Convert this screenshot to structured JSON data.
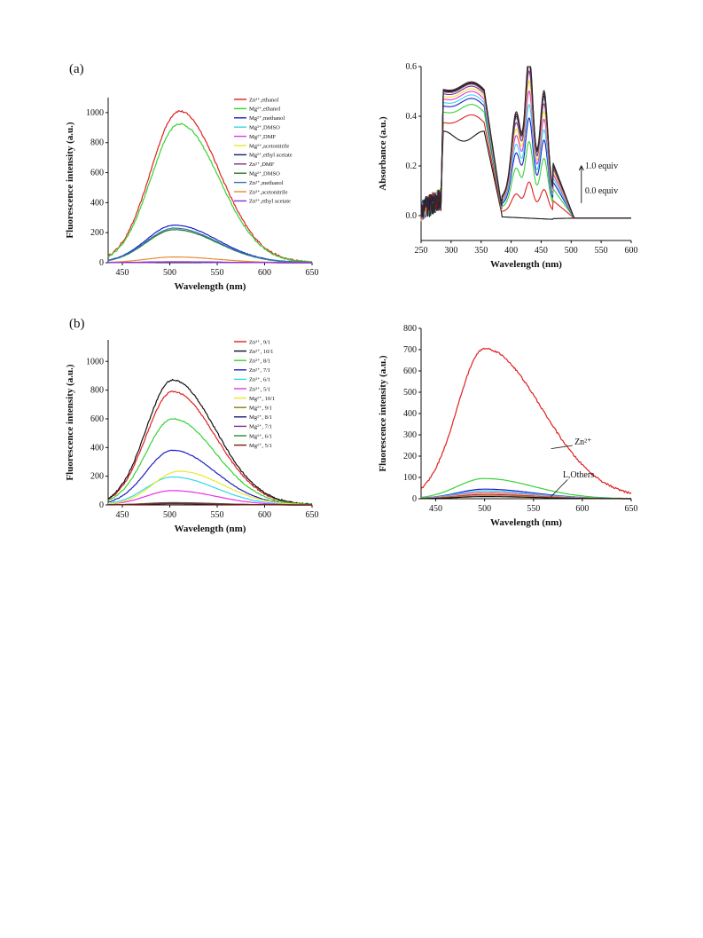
{
  "panels": {
    "a": "(a)",
    "b": "(b)"
  },
  "chart_data": [
    {
      "id": "chart1",
      "type": "line",
      "xlabel": "Wavelength (nm)",
      "ylabel": "Fluorescence intensity (a.u.)",
      "xlim": [
        435,
        650
      ],
      "ylim": [
        0,
        1100
      ],
      "xticks": [
        450,
        500,
        550,
        600,
        650
      ],
      "yticks": [
        0,
        200,
        400,
        600,
        800,
        1000
      ],
      "legend_position": "top-right",
      "series": [
        {
          "name": "Zn²⁺,ethanol",
          "color": "#e02020",
          "peak": 1010,
          "center": 510,
          "wl": 30,
          "wr": 42
        },
        {
          "name": "Mg²⁺,ethanol",
          "color": "#36d236",
          "peak": 925,
          "center": 510,
          "wl": 30,
          "wr": 42
        },
        {
          "name": "Mg²⁺,methanol",
          "color": "#1f1fc4",
          "peak": 250,
          "center": 505,
          "wl": 30,
          "wr": 45
        },
        {
          "name": "Mg²⁺,DMSO",
          "color": "#30d8e8",
          "peak": 4,
          "center": 505,
          "wl": 30,
          "wr": 45
        },
        {
          "name": "Mg²⁺,DMF",
          "color": "#e830e8",
          "peak": 4,
          "center": 505,
          "wl": 30,
          "wr": 45
        },
        {
          "name": "Mg²⁺,acetonitrile",
          "color": "#e8e830",
          "peak": 5,
          "center": 505,
          "wl": 30,
          "wr": 45
        },
        {
          "name": "Mg²⁺,ethyl acetate",
          "color": "#1a1a60",
          "peak": 5,
          "center": 505,
          "wl": 30,
          "wr": 45
        },
        {
          "name": "Zn²⁺,DMF",
          "color": "#8a2a8a",
          "peak": 5,
          "center": 505,
          "wl": 30,
          "wr": 45
        },
        {
          "name": "Mg²⁺,DMSO",
          "color": "#2a7a2a",
          "peak": 220,
          "center": 505,
          "wl": 30,
          "wr": 45
        },
        {
          "name": "Zn²⁺,methanol",
          "color": "#2a7ab0",
          "peak": 230,
          "center": 505,
          "wl": 30,
          "wr": 45
        },
        {
          "name": "Zn²⁺,acetonitrile",
          "color": "#e88a30",
          "peak": 38,
          "center": 505,
          "wl": 30,
          "wr": 45
        },
        {
          "name": "Zn²⁺,ethyl acetate",
          "color": "#8a2ae8",
          "peak": 6,
          "center": 505,
          "wl": 30,
          "wr": 45
        }
      ]
    },
    {
      "id": "chart2",
      "type": "line",
      "xlabel": "Wavelength (nm)",
      "ylabel": "Absorbance (a.u.)",
      "xlim": [
        250,
        600
      ],
      "ylim": [
        -0.1,
        0.6
      ],
      "xticks": [
        250,
        300,
        350,
        400,
        450,
        500,
        550,
        600
      ],
      "yticks": [
        0.0,
        0.2,
        0.4,
        0.6
      ],
      "annotations": [
        "1.0 equiv",
        "0.0 equiv"
      ],
      "series": [
        {
          "color": "#111111",
          "amp": 0.0
        },
        {
          "color": "#e02020",
          "amp": 0.1
        },
        {
          "color": "#36d236",
          "amp": 0.22
        },
        {
          "color": "#1f1fc4",
          "amp": 0.29
        },
        {
          "color": "#30d8e8",
          "amp": 0.33
        },
        {
          "color": "#e830e8",
          "amp": 0.37
        },
        {
          "color": "#e8e830",
          "amp": 0.4
        },
        {
          "color": "#8a2a8a",
          "amp": 0.43
        },
        {
          "color": "#a0a0a0",
          "amp": 0.45
        },
        {
          "color": "#1a1a60",
          "amp": 0.46
        },
        {
          "color": "#6a1a1a",
          "amp": 0.47
        },
        {
          "color": "#2a2a2a",
          "amp": 0.48
        }
      ]
    },
    {
      "id": "chart3",
      "type": "line",
      "xlabel": "Wavelength (nm)",
      "ylabel": "Fluorescence intensity (a.u.)",
      "xlim": [
        435,
        650
      ],
      "ylim": [
        0,
        1150
      ],
      "xticks": [
        450,
        500,
        550,
        600,
        650
      ],
      "yticks": [
        0,
        200,
        400,
        600,
        800,
        1000
      ],
      "legend_position": "top-right",
      "series": [
        {
          "name": "Zn²⁺, 9/1",
          "color": "#e02020",
          "peak": 790,
          "center": 503,
          "wl": 28,
          "wr": 45
        },
        {
          "name": "Zn²⁺, 10/1",
          "color": "#111111",
          "peak": 870,
          "center": 503,
          "wl": 28,
          "wr": 45
        },
        {
          "name": "Zn²⁺, 8/1",
          "color": "#36d236",
          "peak": 600,
          "center": 503,
          "wl": 28,
          "wr": 45
        },
        {
          "name": "Zn²⁺, 7/1",
          "color": "#1f1fc4",
          "peak": 380,
          "center": 503,
          "wl": 28,
          "wr": 45
        },
        {
          "name": "Zn²⁺, 6/1",
          "color": "#30d8e8",
          "peak": 195,
          "center": 503,
          "wl": 28,
          "wr": 45
        },
        {
          "name": "Zn²⁺, 5/1",
          "color": "#e830e8",
          "peak": 100,
          "center": 503,
          "wl": 28,
          "wr": 45
        },
        {
          "name": "Mg²⁺, 10/1",
          "color": "#e8e830",
          "peak": 235,
          "center": 510,
          "wl": 28,
          "wr": 45
        },
        {
          "name": "Mg²⁺, 9/1",
          "color": "#8a7a1a",
          "peak": 16,
          "center": 503,
          "wl": 28,
          "wr": 45
        },
        {
          "name": "Mg²⁺, 8/1",
          "color": "#1a1a80",
          "peak": 14,
          "center": 503,
          "wl": 28,
          "wr": 45
        },
        {
          "name": "Mg²⁺, 7/1",
          "color": "#8a2a8a",
          "peak": 12,
          "center": 503,
          "wl": 28,
          "wr": 45
        },
        {
          "name": "Mg²⁺, 6/1",
          "color": "#2a8a2a",
          "peak": 10,
          "center": 503,
          "wl": 28,
          "wr": 45
        },
        {
          "name": "Mg²⁺, 5/1",
          "color": "#7a1a1a",
          "peak": 8,
          "center": 503,
          "wl": 28,
          "wr": 45
        }
      ]
    },
    {
      "id": "chart4",
      "type": "line",
      "xlabel": "Wavelength (nm)",
      "ylabel": "Fluorescence intensity (a.u.)",
      "xlim": [
        435,
        650
      ],
      "ylim": [
        0,
        800
      ],
      "xticks": [
        450,
        500,
        550,
        600,
        650
      ],
      "yticks": [
        0,
        100,
        200,
        300,
        400,
        500,
        600,
        700,
        800
      ],
      "annotations": [
        "Zn²⁺",
        "L,Others"
      ],
      "series": [
        {
          "color": "#e02020",
          "peak": 705,
          "center": 500,
          "wl": 28,
          "wr": 58
        },
        {
          "color": "#36d236",
          "peak": 95,
          "center": 500,
          "wl": 28,
          "wr": 50
        },
        {
          "color": "#1f1fc4",
          "peak": 45,
          "center": 500,
          "wl": 28,
          "wr": 50
        },
        {
          "color": "#30d8e8",
          "peak": 38,
          "center": 500,
          "wl": 28,
          "wr": 50
        },
        {
          "color": "#e830e8",
          "peak": 30,
          "center": 500,
          "wl": 28,
          "wr": 50
        },
        {
          "color": "#e8e830",
          "peak": 25,
          "center": 500,
          "wl": 28,
          "wr": 50
        },
        {
          "color": "#8a2a8a",
          "peak": 20,
          "center": 500,
          "wl": 28,
          "wr": 50
        },
        {
          "color": "#e88a30",
          "peak": 15,
          "center": 500,
          "wl": 28,
          "wr": 50
        },
        {
          "color": "#111111",
          "peak": 10,
          "center": 500,
          "wl": 28,
          "wr": 50
        }
      ]
    }
  ]
}
